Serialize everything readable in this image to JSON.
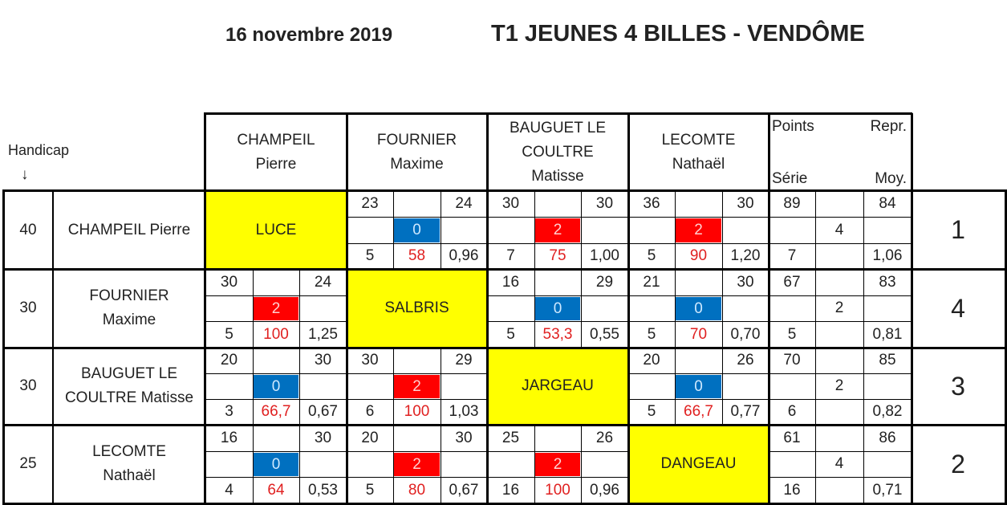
{
  "header": {
    "date": "16 novembre 2019",
    "title": "T1 JEUNES 4 BILLES - VENDÔME",
    "handicap_label": "Handicap",
    "handicap_arrow": "↓"
  },
  "stats_header": {
    "points": "Points",
    "repr": "Repr.",
    "serie": "Série",
    "moy": "Moy."
  },
  "columns": [
    {
      "line1": "CHAMPEIL",
      "line2": "Pierre"
    },
    {
      "line1": "FOURNIER",
      "line2": "Maxime"
    },
    {
      "line1": "BAUGUET LE",
      "line2": "COULTRE",
      "line3": "Matisse"
    },
    {
      "line1": "LECOMTE",
      "line2": "Nathaël"
    }
  ],
  "colors": {
    "yellow": "#ffff00",
    "red": "#ff0000",
    "blue": "#0070c0",
    "red_text": "#e02020"
  },
  "rows": [
    {
      "handicap": "40",
      "name": "CHAMPEIL  Pierre",
      "club": "LUCE",
      "rank": "1",
      "matches": [
        null,
        {
          "top_left": "23",
          "top_right": "24",
          "score": "0",
          "bot_left": "5",
          "pct": "58",
          "avg": "0,96"
        },
        {
          "top_left": "30",
          "top_right": "30",
          "score": "2",
          "bot_left": "7",
          "pct": "75",
          "avg": "1,00"
        },
        {
          "top_left": "36",
          "top_right": "30",
          "score": "2",
          "bot_left": "5",
          "pct": "90",
          "avg": "1,20"
        }
      ],
      "stats": {
        "points": "89",
        "repr": "84",
        "match_pts": "4",
        "serie": "7",
        "moy": "1,06"
      }
    },
    {
      "handicap": "30",
      "name_line1": "FOURNIER",
      "name_line2": "Maxime",
      "club": "SALBRIS",
      "rank": "4",
      "matches": [
        {
          "top_left": "30",
          "top_right": "24",
          "score": "2",
          "bot_left": "5",
          "pct": "100",
          "avg": "1,25"
        },
        null,
        {
          "top_left": "16",
          "top_right": "29",
          "score": "0",
          "bot_left": "5",
          "pct": "53,3",
          "avg": "0,55"
        },
        {
          "top_left": "21",
          "top_right": "30",
          "score": "0",
          "bot_left": "5",
          "pct": "70",
          "avg": "0,70"
        }
      ],
      "stats": {
        "points": "67",
        "repr": "83",
        "match_pts": "2",
        "serie": "5",
        "moy": "0,81"
      }
    },
    {
      "handicap": "30",
      "name_line1": "BAUGUET LE",
      "name_line2": "COULTRE  Matisse",
      "club": "JARGEAU",
      "rank": "3",
      "matches": [
        {
          "top_left": "20",
          "top_right": "30",
          "score": "0",
          "bot_left": "3",
          "pct": "66,7",
          "avg": "0,67"
        },
        {
          "top_left": "30",
          "top_right": "29",
          "score": "2",
          "bot_left": "6",
          "pct": "100",
          "avg": "1,03"
        },
        null,
        {
          "top_left": "20",
          "top_right": "26",
          "score": "0",
          "bot_left": "5",
          "pct": "66,7",
          "avg": "0,77"
        }
      ],
      "stats": {
        "points": "70",
        "repr": "85",
        "match_pts": "2",
        "serie": "6",
        "moy": "0,82"
      }
    },
    {
      "handicap": "25",
      "name_line1": "LECOMTE",
      "name_line2": "Nathaël",
      "club": "DANGEAU",
      "rank": "2",
      "matches": [
        {
          "top_left": "16",
          "top_right": "30",
          "score": "0",
          "bot_left": "4",
          "pct": "64",
          "avg": "0,53"
        },
        {
          "top_left": "20",
          "top_right": "30",
          "score": "2",
          "bot_left": "5",
          "pct": "80",
          "avg": "0,67"
        },
        {
          "top_left": "25",
          "top_right": "26",
          "score": "2",
          "bot_left": "16",
          "pct": "100",
          "avg": "0,96"
        },
        null
      ],
      "stats": {
        "points": "61",
        "repr": "86",
        "match_pts": "4",
        "serie": "16",
        "moy": "0,71"
      }
    }
  ]
}
